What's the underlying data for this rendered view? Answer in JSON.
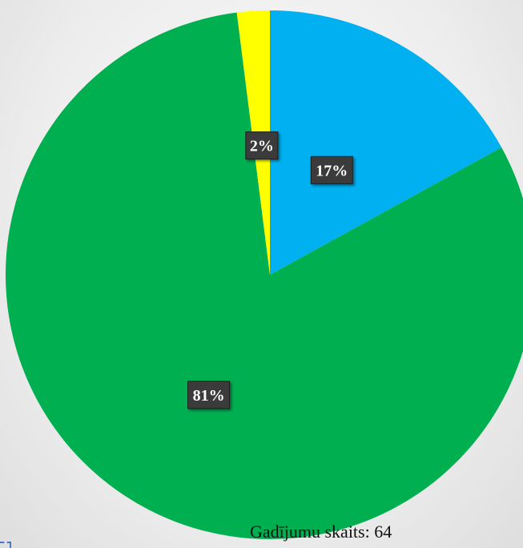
{
  "chart_data": {
    "type": "pie",
    "start_angle": "12 o'clock",
    "direction": "clockwise",
    "slices": [
      {
        "label": "17%",
        "value": 17,
        "color": "#00B0F0"
      },
      {
        "label": "81%",
        "value": 81,
        "color": "#00B050"
      },
      {
        "label": "2%",
        "value": 2,
        "color": "#FFFF00"
      }
    ],
    "legend": "none"
  },
  "footer": {
    "case_count": "Gadījumu skaits: 64"
  }
}
